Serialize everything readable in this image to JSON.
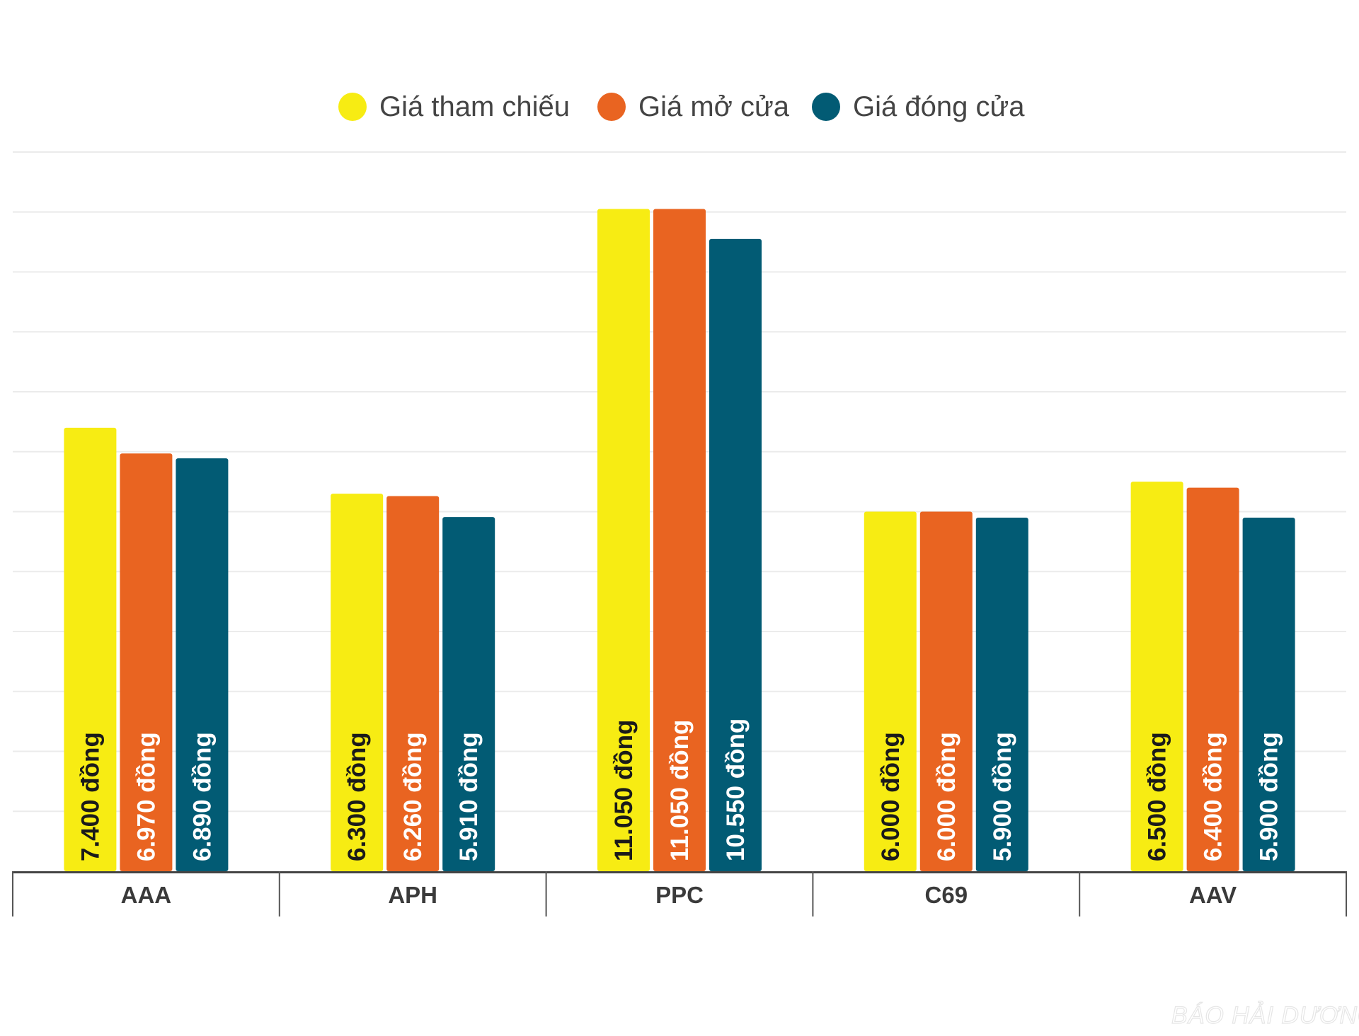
{
  "chart_data": {
    "type": "bar",
    "categories": [
      "AAA",
      "APH",
      "PPC",
      "C69",
      "AAV"
    ],
    "series": [
      {
        "name": "Giá tham chiếu",
        "color": "#f7ec13",
        "label_color": "#1a1a1a",
        "values": [
          7400,
          6300,
          11050,
          6000,
          6500
        ],
        "labels": [
          "7.400 đồng",
          "6.300 đồng",
          "11.050 đồng",
          "6.000 đồng",
          "6.500 đồng"
        ]
      },
      {
        "name": "Giá mở cửa",
        "color": "#e96421",
        "label_color": "#ffffff",
        "values": [
          6970,
          6260,
          11050,
          6000,
          6400
        ],
        "labels": [
          "6.970 đồng",
          "6.260 đồng",
          "11.050 đồng",
          "6.000 đồng",
          "6.400 đồng"
        ]
      },
      {
        "name": "Giá đóng cửa",
        "color": "#025b74",
        "label_color": "#ffffff",
        "values": [
          6890,
          5910,
          10550,
          5900,
          5900
        ],
        "labels": [
          "6.890 đồng",
          "5.910 đồng",
          "10.550 đồng",
          "5.900 đồng",
          "5.900 đồng"
        ]
      }
    ],
    "ylim": [
      0,
      12000
    ],
    "grid": true,
    "legend_position": "top-center"
  },
  "watermark": "BÁO HẢI DƯƠNG"
}
